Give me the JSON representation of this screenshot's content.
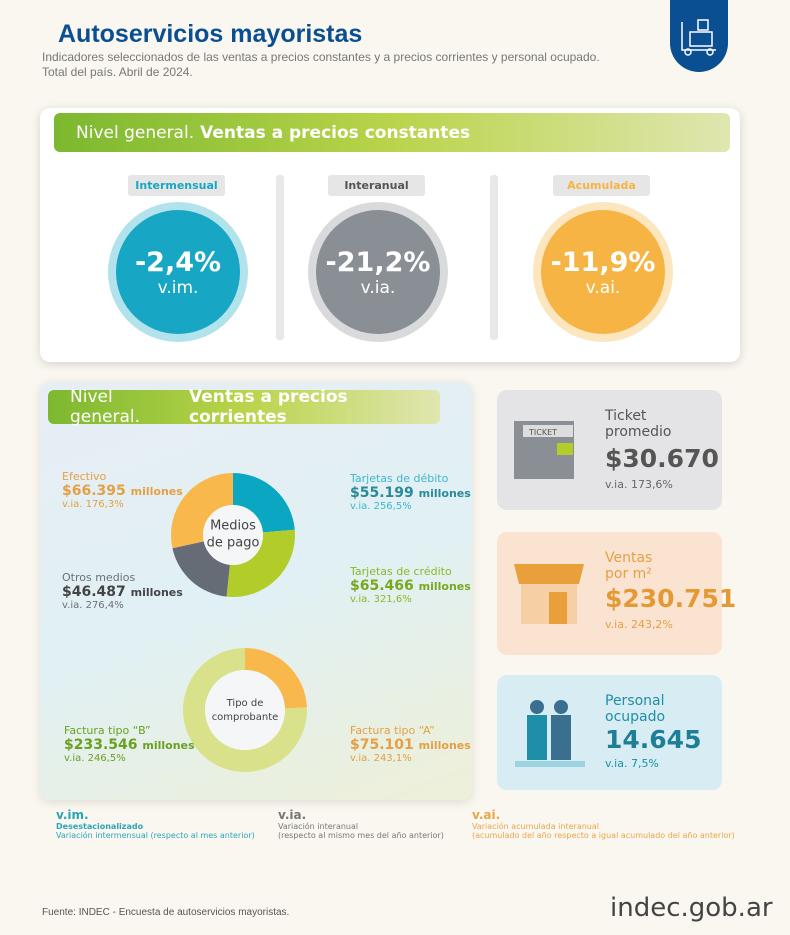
{
  "header": {
    "title": "Autoservicios mayoristas",
    "subtitle1": "Indicadores seleccionados de las ventas a precios constantes y a precios corrientes y personal ocupado.",
    "subtitle2": "Total del país. Abril de 2024."
  },
  "constantes": {
    "title_a": "Nivel general.",
    "title_b": "Ventas a precios constantes",
    "items": [
      {
        "label": "Intermensual",
        "value": "-2,4%",
        "unit": "v.im.",
        "color": "#17a7c4"
      },
      {
        "label": "Interanual",
        "value": "-21,2%",
        "unit": "v.ia.",
        "color": "#8a8f96"
      },
      {
        "label": "Acumulada",
        "value": "-11,9%",
        "unit": "v.ai.",
        "color": "#f5b443"
      }
    ]
  },
  "corrientes": {
    "title_a": "Nivel general.",
    "title_b": "Ventas a precios corrientes",
    "medios_center": [
      "Medios",
      "de pago"
    ],
    "medios": [
      {
        "name": "Efectivo",
        "value": "$66.395",
        "unit": "millones",
        "via": "v.ia. 176,3%"
      },
      {
        "name": "Tarjetas de débito",
        "value": "$55.199",
        "unit": "millones",
        "via": "v.ia. 256,5%"
      },
      {
        "name": "Otros medios",
        "value": "$46.487",
        "unit": "millones",
        "via": "v.ia. 276,4%"
      },
      {
        "name": "Tarjetas de crédito",
        "value": "$65.466",
        "unit": "millones",
        "via": "v.ia. 321,6%"
      }
    ],
    "comp_center": [
      "Tipo de",
      "comprobante"
    ],
    "comprobantes": [
      {
        "name": "Factura tipo “B”",
        "value": "$233.546",
        "unit": "millones",
        "via": "v.ia. 246,5%"
      },
      {
        "name": "Factura tipo “A”",
        "value": "$75.101",
        "unit": "millones",
        "via": "v.ia. 243,1%"
      }
    ]
  },
  "right": [
    {
      "t1": "Ticket",
      "t2": "promedio",
      "value": "$30.670",
      "via": "v.ia. 173,6%",
      "icon_text": "TICKET"
    },
    {
      "t1": "Ventas",
      "t2": "por m²",
      "value": "$230.751",
      "via": "v.ia. 243,2%"
    },
    {
      "t1": "Personal",
      "t2": "ocupado",
      "value": "14.645",
      "via": "v.ia. 7,5%"
    }
  ],
  "legend": [
    {
      "k": "v.im.",
      "l1": "Desestacionalizado",
      "l2": "Variación intermensual (respecto al mes anterior)"
    },
    {
      "k": "v.ia.",
      "l1": "Variación interanual",
      "l2": "(respecto al mismo mes del año anterior)"
    },
    {
      "k": "v.ai.",
      "l1": "Variación acumulada interanual",
      "l2": "(acumulado del año respecto a igual acumulado del año anterior)"
    }
  ],
  "footer": {
    "source": "Fuente: INDEC - Encuesta de autoservicios mayoristas.",
    "logo": "indec.gob.ar"
  },
  "chart_data": [
    {
      "type": "pie",
      "title": "Medios de pago",
      "categories": [
        "Tarjetas de débito",
        "Tarjetas de crédito",
        "Otros medios",
        "Efectivo"
      ],
      "values": [
        55199,
        65466,
        46487,
        66395
      ],
      "colors": [
        "#0aa6c2",
        "#b2cc2a",
        "#666c75",
        "#f9b84c"
      ],
      "unit": "millones de $"
    },
    {
      "type": "pie",
      "title": "Tipo de comprobante",
      "categories": [
        "Factura tipo “A”",
        "Factura tipo “B”"
      ],
      "values": [
        75101,
        233546
      ],
      "colors": [
        "#f9b84c",
        "#d9e28a"
      ],
      "unit": "millones de $"
    }
  ]
}
